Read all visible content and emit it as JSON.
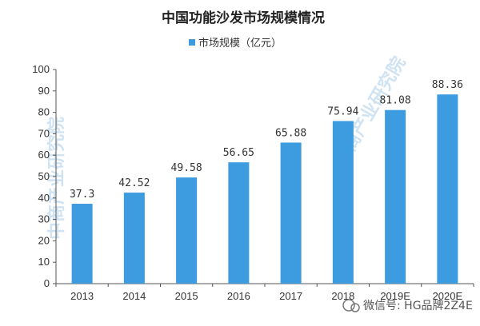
{
  "chart_data": {
    "type": "bar",
    "title": "中国功能沙发市场规模情况",
    "legend": {
      "position": "top",
      "entries": [
        "市场规模（亿元）"
      ]
    },
    "categories": [
      "2013",
      "2014",
      "2015",
      "2016",
      "2017",
      "2018",
      "2019E",
      "2020E"
    ],
    "series": [
      {
        "name": "市场规模（亿元）",
        "values": [
          37.3,
          42.52,
          49.58,
          56.65,
          65.88,
          75.94,
          81.08,
          88.36
        ]
      }
    ],
    "data_labels": [
      "37.3",
      "42.52",
      "49.58",
      "56.65",
      "65.88",
      "75.94",
      "81.08",
      "88.36"
    ],
    "yticks": [
      "0",
      "10",
      "20",
      "30",
      "40",
      "50",
      "60",
      "70",
      "80",
      "90",
      "100"
    ],
    "ylim": [
      0,
      100
    ],
    "grid": false,
    "colors": {
      "bar": "#3d9be0"
    }
  },
  "watermark": "中商产业研究院",
  "footer": {
    "wechat_label": "微信号: HG品牌2Z4E"
  }
}
